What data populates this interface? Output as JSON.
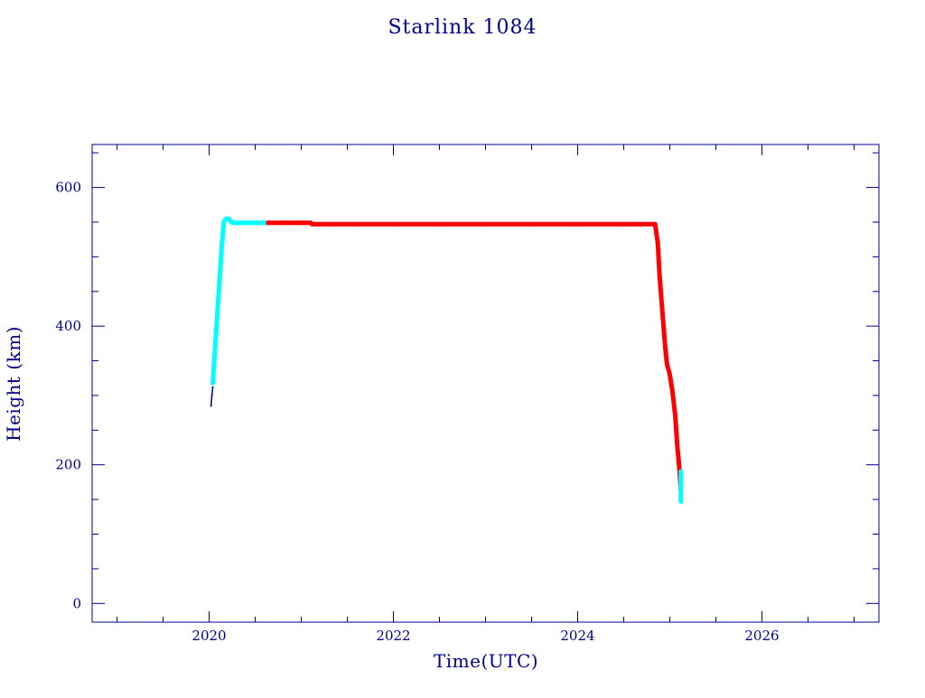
{
  "chart_data": {
    "type": "scatter",
    "title": "Starlink 1084",
    "xlabel": "Time(UTC)",
    "ylabel": "Height (km)",
    "xlim": [
      2018.73,
      2027.27
    ],
    "ylim": [
      -27,
      662
    ],
    "x_ticks": [
      2020,
      2022,
      2024,
      2026
    ],
    "y_ticks": [
      0,
      200,
      400,
      600
    ],
    "grid": false,
    "legend": "none",
    "colors": {
      "axis": "#00008b",
      "early": "#00008b",
      "cyan": "#00ffff",
      "red": "#ff0000"
    },
    "series": [
      {
        "color": "#00008b",
        "x": [
          2020.02,
          2020.03,
          2020.04
        ],
        "y": [
          285,
          300,
          312
        ]
      },
      {
        "color": "#00ffff",
        "x": [
          2020.04,
          2020.06,
          2020.08,
          2020.1,
          2020.12,
          2020.14,
          2020.16,
          2020.18,
          2020.2,
          2020.22,
          2020.24,
          2020.26,
          2020.3,
          2020.4,
          2020.5,
          2020.6,
          2020.63
        ],
        "y": [
          318,
          360,
          400,
          440,
          480,
          520,
          550,
          555,
          555,
          554,
          550,
          549,
          549,
          549,
          549,
          549,
          549
        ]
      },
      {
        "color": "#ff0000",
        "x": [
          2020.64,
          2020.8,
          2021.0,
          2021.1,
          2021.12,
          2021.3,
          2021.6,
          2022.0,
          2022.5,
          2023.0,
          2023.5,
          2024.0,
          2024.5,
          2024.84,
          2024.87,
          2024.89,
          2024.92,
          2024.95,
          2024.97,
          2025.0,
          2025.03,
          2025.06,
          2025.08,
          2025.1,
          2025.12
        ],
        "y": [
          549,
          549,
          549,
          549,
          547,
          547,
          547,
          547,
          547,
          547,
          547,
          547,
          547,
          547,
          520,
          470,
          420,
          370,
          345,
          330,
          305,
          270,
          230,
          200,
          165
        ]
      },
      {
        "color": "#00ffff",
        "x": [
          2025.12,
          2025.12
        ],
        "y": [
          190,
          147
        ]
      }
    ]
  }
}
